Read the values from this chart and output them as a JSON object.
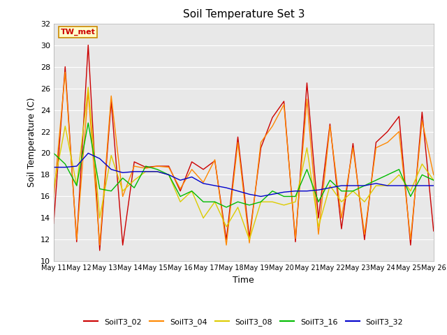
{
  "title": "Soil Temperature Set 3",
  "xlabel": "Time",
  "ylabel": "Soil Temperature (C)",
  "annotation": "TW_met",
  "ylim": [
    10,
    32
  ],
  "yticks": [
    10,
    12,
    14,
    16,
    18,
    20,
    22,
    24,
    26,
    28,
    30,
    32
  ],
  "series_colors": {
    "SoilT3_02": "#cc0000",
    "SoilT3_04": "#ff8800",
    "SoilT3_08": "#ddcc00",
    "SoilT3_16": "#00bb00",
    "SoilT3_32": "#0000cc"
  },
  "x_tick_labels": [
    "May 11",
    "May 12",
    "May 13",
    "May 14",
    "May 15",
    "May 16",
    "May 17",
    "May 18",
    "May 19",
    "May 20",
    "May 21",
    "May 22",
    "May 23",
    "May 24",
    "May 25",
    "May 26"
  ],
  "fig_bg": "#ffffff",
  "plot_bg": "#e8e8e8",
  "grid_color": "#ffffff",
  "SoilT3_02": [
    13.5,
    28.0,
    11.8,
    30.0,
    11.0,
    24.8,
    11.5,
    19.2,
    18.7,
    18.8,
    18.8,
    16.5,
    19.2,
    18.5,
    19.3,
    12.0,
    21.5,
    12.2,
    20.5,
    23.3,
    24.8,
    11.8,
    26.5,
    14.0,
    22.7,
    13.0,
    20.9,
    12.0,
    21.0,
    22.0,
    23.4,
    11.5,
    23.8,
    12.8
  ],
  "SoilT3_04": [
    15.8,
    27.5,
    12.0,
    25.7,
    11.5,
    25.3,
    16.0,
    18.8,
    18.6,
    18.8,
    18.7,
    16.7,
    18.5,
    17.3,
    19.4,
    11.5,
    21.0,
    11.7,
    21.0,
    22.5,
    24.5,
    12.1,
    25.0,
    12.5,
    22.5,
    14.0,
    20.5,
    12.5,
    20.5,
    21.0,
    22.0,
    12.0,
    23.0,
    18.0
  ],
  "SoilT3_08": [
    16.8,
    22.5,
    17.0,
    26.1,
    14.0,
    19.8,
    16.5,
    17.5,
    18.3,
    18.3,
    18.0,
    15.5,
    16.5,
    14.0,
    15.5,
    13.2,
    15.0,
    12.0,
    15.5,
    15.5,
    15.2,
    15.5,
    20.5,
    13.2,
    17.0,
    15.5,
    16.5,
    15.5,
    17.0,
    17.0,
    18.0,
    16.5,
    19.0,
    17.5
  ],
  "SoilT3_16": [
    20.0,
    19.0,
    17.0,
    22.8,
    16.7,
    16.5,
    17.7,
    16.8,
    18.8,
    18.5,
    18.0,
    16.0,
    16.5,
    15.5,
    15.5,
    15.0,
    15.5,
    15.2,
    15.5,
    16.5,
    16.0,
    16.0,
    18.5,
    15.5,
    17.5,
    16.5,
    16.5,
    17.0,
    17.5,
    18.0,
    18.5,
    16.0,
    18.0,
    17.5
  ],
  "SoilT3_32": [
    18.7,
    18.7,
    18.8,
    20.0,
    19.5,
    18.5,
    18.2,
    18.3,
    18.3,
    18.3,
    18.0,
    17.5,
    17.8,
    17.2,
    17.0,
    16.8,
    16.5,
    16.2,
    16.0,
    16.2,
    16.4,
    16.5,
    16.5,
    16.6,
    16.8,
    17.0,
    17.0,
    17.0,
    17.2,
    17.0,
    17.0,
    17.0,
    17.0,
    17.0
  ]
}
